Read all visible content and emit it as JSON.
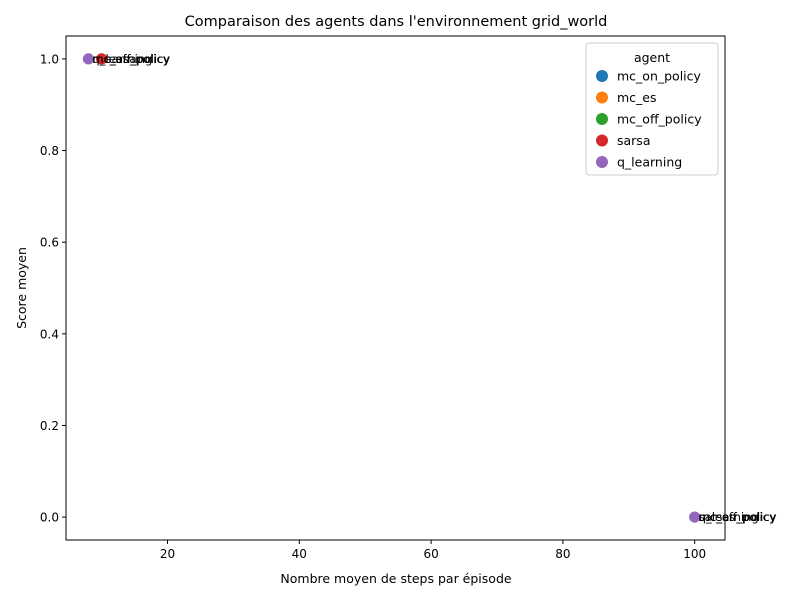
{
  "chart_data": {
    "type": "scatter",
    "title": "Comparaison des agents dans l'environnement grid_world",
    "xlabel": "Nombre moyen de steps par épisode",
    "ylabel": "Score moyen",
    "xlim": [
      4.6,
      104.6
    ],
    "ylim": [
      -0.05,
      1.05
    ],
    "xticks": [
      20,
      40,
      60,
      80,
      100
    ],
    "yticks": [
      0.0,
      0.2,
      0.4,
      0.6,
      0.8,
      1.0
    ],
    "xtick_labels": [
      "20",
      "40",
      "60",
      "80",
      "100"
    ],
    "ytick_labels": [
      "0.0",
      "0.2",
      "0.4",
      "0.6",
      "0.8",
      "1.0"
    ],
    "grid": false,
    "legend": {
      "title": "agent",
      "placement": "top-right"
    },
    "series": [
      {
        "name": "mc_on_policy",
        "color": "#1f77b4",
        "points": [
          {
            "x": 8,
            "y": 1.0
          },
          {
            "x": 100,
            "y": 0.0
          }
        ]
      },
      {
        "name": "mc_es",
        "color": "#ff7f0e",
        "points": [
          {
            "x": 8,
            "y": 1.0
          },
          {
            "x": 100,
            "y": 0.0
          }
        ]
      },
      {
        "name": "mc_off_policy",
        "color": "#2ca02c",
        "points": [
          {
            "x": 8,
            "y": 1.0
          },
          {
            "x": 100,
            "y": 0.0
          }
        ]
      },
      {
        "name": "sarsa",
        "color": "#d62728",
        "points": [
          {
            "x": 10,
            "y": 1.0
          },
          {
            "x": 100,
            "y": 0.0
          }
        ]
      },
      {
        "name": "q_learning",
        "color": "#9467bd",
        "points": [
          {
            "x": 8,
            "y": 1.0
          },
          {
            "x": 100,
            "y": 0.0
          }
        ]
      }
    ]
  }
}
